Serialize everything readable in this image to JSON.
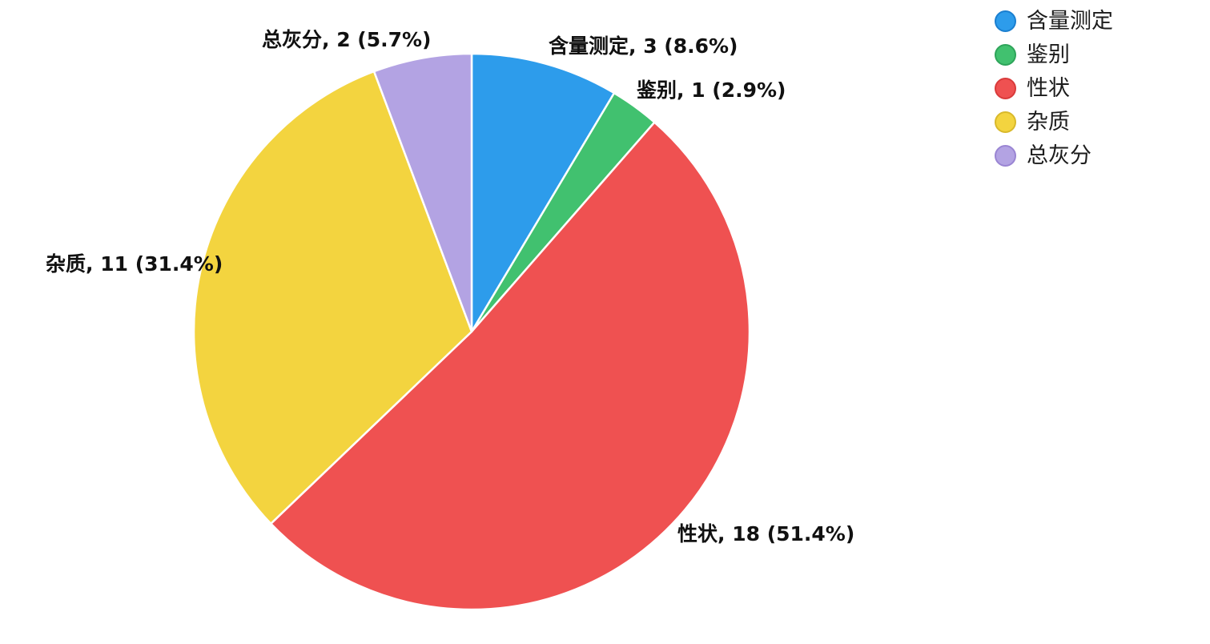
{
  "chart_data": {
    "type": "pie",
    "title": "",
    "total": 35,
    "legend_position": "top-right",
    "start_angle_deg": -90,
    "direction": "clockwise",
    "label_format": "name, value (pct)",
    "slices": [
      {
        "name": "含量测定",
        "value": 3,
        "pct": "8.6%",
        "label": "含量测定, 3 (8.6%)",
        "color": "#2D9CEB",
        "border": "#1B7FD0"
      },
      {
        "name": "鉴别",
        "value": 1,
        "pct": "2.9%",
        "label": "鉴别, 1 (2.9%)",
        "color": "#41C16F",
        "border": "#2EA45A"
      },
      {
        "name": "性状",
        "value": 18,
        "pct": "51.4%",
        "label": "性状, 18 (51.4%)",
        "color": "#EF5151",
        "border": "#D93B3B"
      },
      {
        "name": "杂质",
        "value": 11,
        "pct": "31.4%",
        "label": "杂质, 11 (31.4%)",
        "color": "#F3D43F",
        "border": "#D9B92B"
      },
      {
        "name": "总灰分",
        "value": 2,
        "pct": "5.7%",
        "label": "总灰分, 2 (5.7%)",
        "color": "#B3A3E3",
        "border": "#9A85D3"
      }
    ],
    "slice_separator_color": "#ffffff",
    "label_text_color": "#111111"
  }
}
